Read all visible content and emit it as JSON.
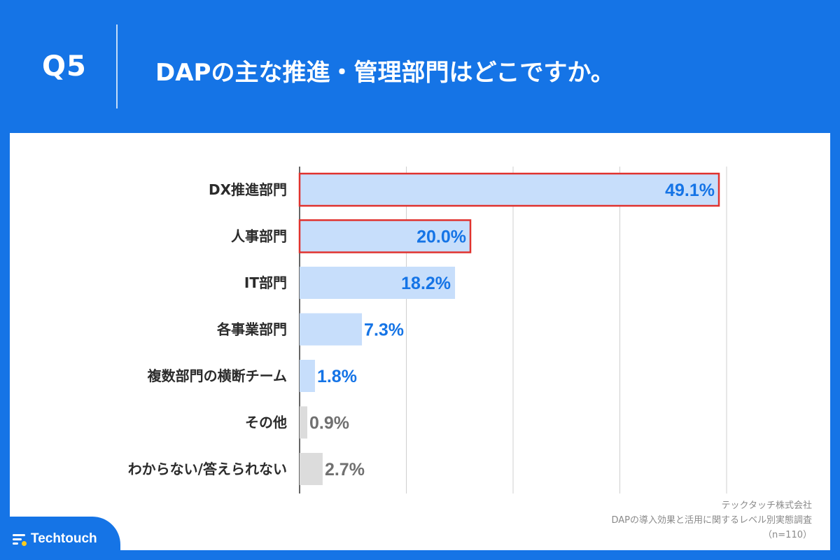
{
  "header": {
    "q_number": "Q5",
    "question": "DAPの主な推進・管理部門はどこですか。"
  },
  "source": {
    "company": "テックタッチ株式会社",
    "survey": "DAPの導入効果と活用に関するレベル別実態調査",
    "sample": "（n=110）"
  },
  "brand": {
    "name": "Techtouch",
    "icon": "techtouch-logo-icon"
  },
  "colors": {
    "background": "#1574e6",
    "bar_blue": "#c7defb",
    "bar_gray": "#dcdcdc",
    "label_blue": "#1574e6",
    "label_gray": "#707070",
    "highlight": "#e0322e"
  },
  "chart_data": {
    "type": "bar",
    "orientation": "horizontal",
    "categories": [
      "DX推進部門",
      "人事部門",
      "IT部門",
      "各事業部門",
      "複数部門の横断チーム",
      "その他",
      "わからない/答えられない"
    ],
    "values": [
      49.1,
      20.0,
      18.2,
      7.3,
      1.8,
      0.9,
      2.7
    ],
    "value_labels": [
      "49.1%",
      "20.0%",
      "18.2%",
      "7.3%",
      "1.8%",
      "0.9%",
      "2.7%"
    ],
    "highlighted": [
      true,
      true,
      false,
      false,
      false,
      false,
      false
    ],
    "gray_bars": [
      false,
      false,
      false,
      false,
      false,
      true,
      true
    ],
    "xlim": [
      0,
      50
    ],
    "gridlines": [
      12.5,
      25,
      37.5,
      50
    ],
    "unit": "%"
  }
}
